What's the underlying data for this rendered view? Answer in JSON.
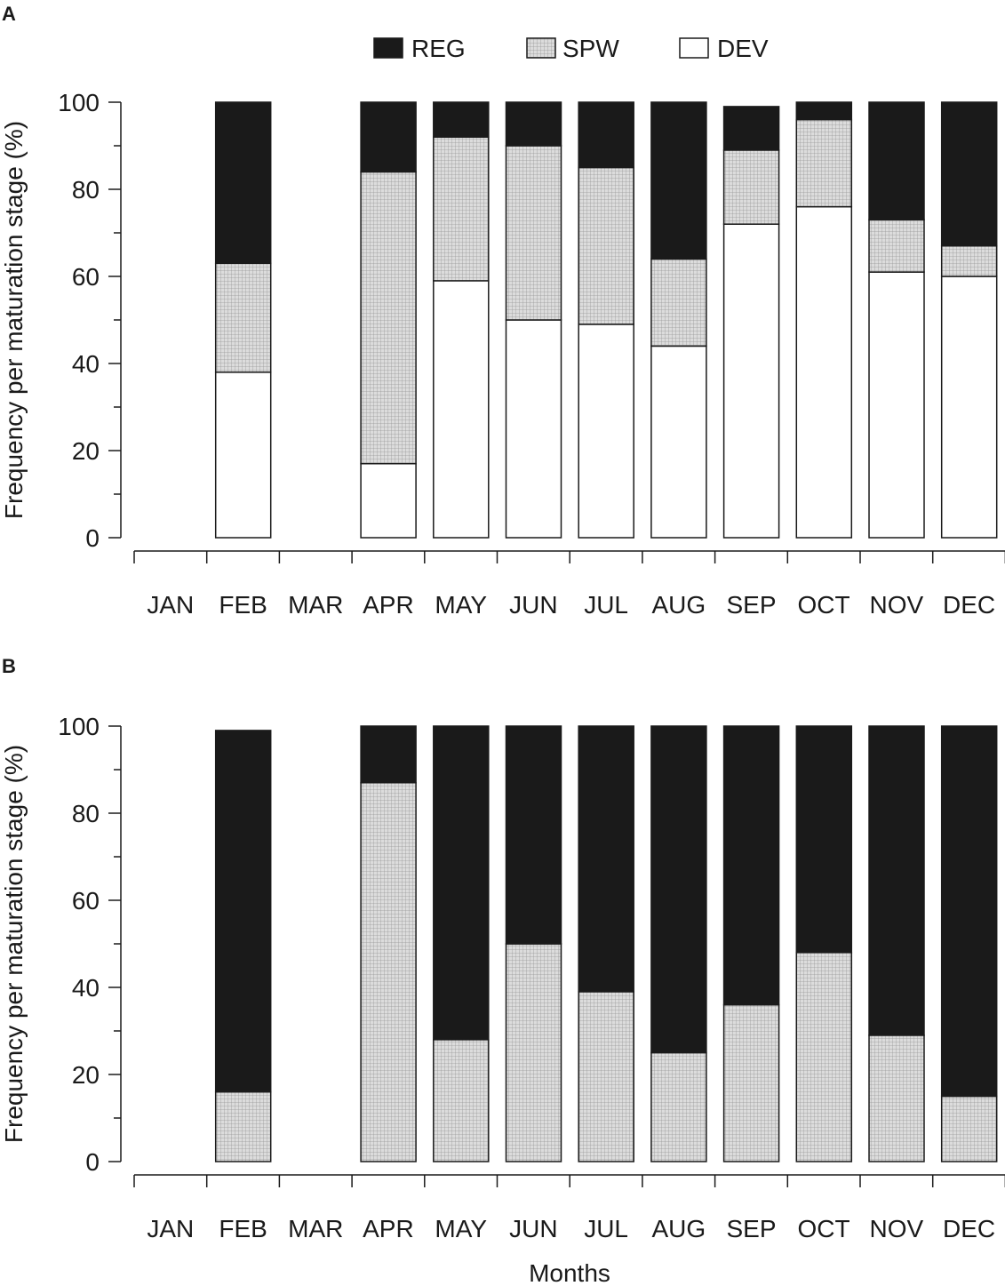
{
  "legend": {
    "items": [
      {
        "key": "REG",
        "label": "REG",
        "fill": "black"
      },
      {
        "key": "SPW",
        "label": "SPW",
        "fill": "pattern"
      },
      {
        "key": "DEV",
        "label": "DEV",
        "fill": "white"
      }
    ]
  },
  "colors": {
    "reg": "#1a1a1a",
    "spw": "#d4d4d4",
    "dev": "#ffffff",
    "stroke": "#1a1a1a"
  },
  "chart_data": [
    {
      "panel": "A",
      "type": "bar",
      "stacked": true,
      "categories": [
        "JAN",
        "FEB",
        "MAR",
        "APR",
        "MAY",
        "JUN",
        "JUL",
        "AUG",
        "SEP",
        "OCT",
        "NOV",
        "DEC"
      ],
      "series": [
        {
          "name": "DEV",
          "values": [
            null,
            38,
            null,
            17,
            59,
            50,
            49,
            44,
            72,
            76,
            61,
            60
          ]
        },
        {
          "name": "SPW",
          "values": [
            null,
            25,
            null,
            67,
            33,
            40,
            36,
            20,
            17,
            20,
            12,
            7
          ]
        },
        {
          "name": "REG",
          "values": [
            null,
            37,
            null,
            16,
            8,
            10,
            15,
            36,
            10,
            4,
            27,
            33
          ]
        }
      ],
      "ylabel": "Frequency per maturation stage (%)",
      "xlabel": "",
      "ylim": [
        0,
        100
      ],
      "yticks": [
        0,
        20,
        40,
        60,
        80,
        100
      ],
      "legend_position": "top"
    },
    {
      "panel": "B",
      "type": "bar",
      "stacked": true,
      "categories": [
        "JAN",
        "FEB",
        "MAR",
        "APR",
        "MAY",
        "JUN",
        "JUL",
        "AUG",
        "SEP",
        "OCT",
        "NOV",
        "DEC"
      ],
      "series": [
        {
          "name": "SPW",
          "values": [
            null,
            16,
            null,
            87,
            28,
            50,
            39,
            25,
            36,
            48,
            29,
            15
          ]
        },
        {
          "name": "REG",
          "values": [
            null,
            83,
            null,
            13,
            72,
            50,
            61,
            75,
            64,
            52,
            71,
            85
          ]
        }
      ],
      "ylabel": "Frequency per maturation stage (%)",
      "xlabel": "Months",
      "ylim": [
        0,
        100
      ],
      "yticks": [
        0,
        20,
        40,
        60,
        80,
        100
      ]
    }
  ]
}
